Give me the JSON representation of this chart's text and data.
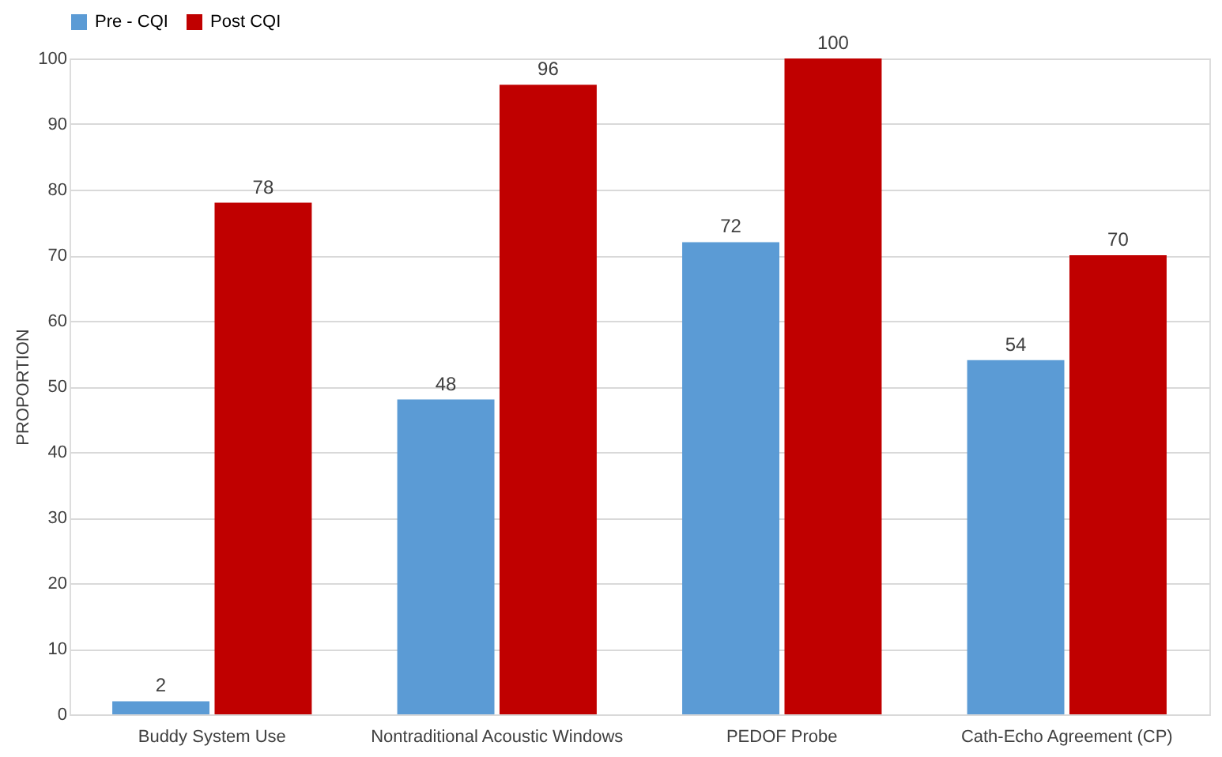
{
  "chart_data": {
    "type": "bar",
    "ylabel": "PROPORTION",
    "categories": [
      "Buddy System Use",
      "Nontraditional Acoustic Windows",
      "PEDOF Probe",
      "Cath-Echo Agreement (CP)"
    ],
    "series": [
      {
        "name": "Pre - CQI",
        "color": "#5b9bd5",
        "values": [
          2,
          48,
          72,
          54
        ]
      },
      {
        "name": "Post CQI",
        "color": "#c00000",
        "values": [
          78,
          96,
          100,
          70
        ]
      }
    ],
    "ylim": [
      0,
      100
    ],
    "yticks": [
      0,
      10,
      20,
      30,
      40,
      50,
      60,
      70,
      80,
      90,
      100
    ],
    "grid": "y",
    "legend": "top",
    "data_labels": true
  }
}
